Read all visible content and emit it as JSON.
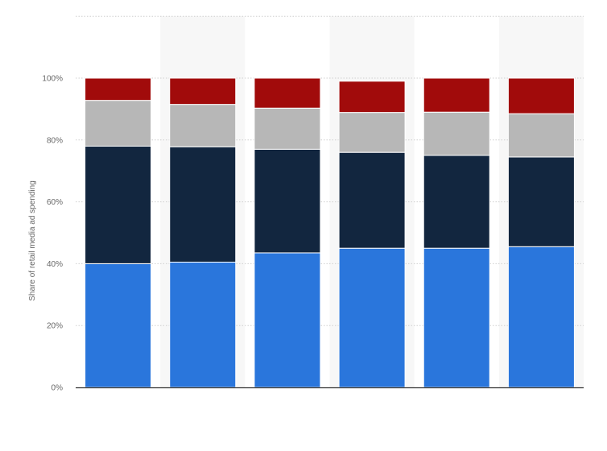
{
  "chart_data": {
    "type": "bar",
    "stacked": true,
    "title": "",
    "xlabel": "",
    "ylabel": "Share of retail media ad spending",
    "ylim": [
      0,
      120
    ],
    "yticks": [
      "0%",
      "20%",
      "40%",
      "60%",
      "80%",
      "100%"
    ],
    "ytick_values": [
      0,
      20,
      40,
      60,
      80,
      100
    ],
    "grid": true,
    "legend": "none",
    "categories": [
      "",
      "",
      "",
      "",
      "",
      ""
    ],
    "series": [
      {
        "color": "#2a76dc",
        "values": [
          40.0,
          40.5,
          43.5,
          45.0,
          45.0,
          45.5
        ]
      },
      {
        "color": "#12263f",
        "values": [
          38.0,
          37.3,
          33.5,
          31.0,
          30.0,
          29.0
        ]
      },
      {
        "color": "#b7b7b7",
        "values": [
          14.8,
          13.7,
          13.3,
          12.9,
          14.0,
          14.0
        ]
      },
      {
        "color": "#a10b0b",
        "values": [
          7.2,
          8.5,
          9.7,
          10.1,
          11.0,
          11.5
        ]
      }
    ],
    "band_color": "#f7f7f7"
  }
}
